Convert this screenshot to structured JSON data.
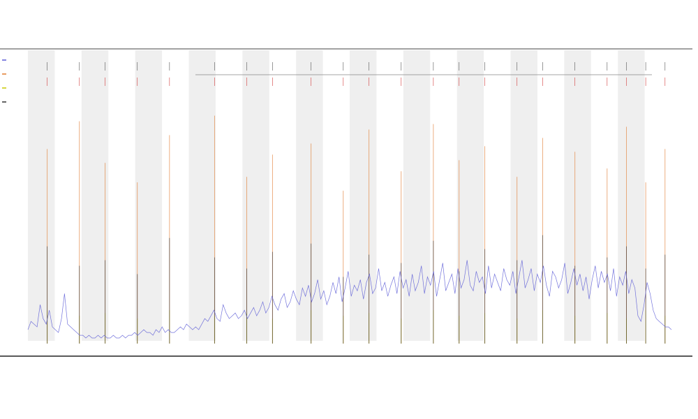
{
  "chart_data": {
    "type": "line",
    "title": "",
    "subtitle_lines": [],
    "xlabel": "",
    "ylabel": "",
    "grid": false,
    "legend_placement": "left",
    "band_color": "#efefef",
    "series": [
      {
        "name": "",
        "color": "#5b5bd6",
        "kind": "line",
        "values": [
          5,
          8,
          7,
          6,
          14,
          9,
          7,
          12,
          6,
          5,
          4,
          9,
          18,
          7,
          6,
          5,
          4,
          3,
          3,
          2,
          3,
          2,
          2,
          3,
          2,
          3,
          2,
          2,
          3,
          2,
          2,
          3,
          2,
          3,
          3,
          4,
          3,
          4,
          5,
          4,
          4,
          3,
          5,
          4,
          6,
          4,
          5,
          4,
          4,
          5,
          6,
          5,
          7,
          6,
          5,
          6,
          5,
          7,
          9,
          8,
          10,
          12,
          9,
          8,
          14,
          11,
          9,
          10,
          11,
          9,
          10,
          12,
          9,
          11,
          13,
          10,
          12,
          15,
          11,
          13,
          17,
          14,
          12,
          16,
          18,
          13,
          15,
          19,
          16,
          14,
          20,
          17,
          21,
          15,
          18,
          23,
          16,
          19,
          14,
          17,
          22,
          18,
          24,
          15,
          20,
          26,
          17,
          21,
          19,
          23,
          16,
          22,
          25,
          18,
          20,
          27,
          19,
          22,
          17,
          21,
          24,
          18,
          26,
          20,
          23,
          17,
          25,
          19,
          22,
          28,
          18,
          24,
          21,
          26,
          17,
          23,
          29,
          19,
          22,
          25,
          18,
          27,
          20,
          23,
          30,
          21,
          19,
          26,
          22,
          24,
          18,
          28,
          20,
          25,
          22,
          19,
          27,
          23,
          21,
          26,
          18,
          24,
          30,
          20,
          23,
          27,
          19,
          25,
          22,
          28,
          21,
          17,
          26,
          24,
          20,
          23,
          29,
          18,
          22,
          27,
          21,
          25,
          19,
          24,
          16,
          23,
          28,
          20,
          26,
          22,
          25,
          19,
          27,
          17,
          24,
          21,
          26,
          18,
          23,
          20,
          10,
          8,
          14,
          22,
          18,
          12,
          9,
          8,
          7,
          6,
          6,
          5
        ]
      },
      {
        "name": "",
        "color": "#e07a2e",
        "kind": "spikes",
        "x": [
          3,
          8,
          12,
          17,
          22,
          29,
          34,
          38,
          44,
          49,
          53,
          58,
          63,
          67,
          71,
          76,
          80,
          85,
          90,
          93,
          96,
          99
        ],
        "values": [
          70,
          80,
          65,
          58,
          75,
          82,
          60,
          68,
          72,
          55,
          77,
          62,
          79,
          66,
          71,
          60,
          74,
          69,
          63,
          78,
          58,
          70
        ]
      },
      {
        "name": "",
        "color": "#c8c800",
        "kind": "spikes",
        "x": [
          3,
          8,
          12,
          17,
          22,
          29,
          34,
          38,
          44,
          49,
          53,
          58,
          63,
          67,
          71,
          76,
          80,
          85,
          90,
          93,
          96,
          99
        ],
        "values": [
          12,
          10,
          11,
          9,
          12,
          10,
          11,
          9,
          12,
          10,
          11,
          9,
          12,
          10,
          11,
          9,
          12,
          10,
          11,
          9,
          12,
          10
        ]
      },
      {
        "name": "",
        "color": "#333333",
        "kind": "spikes",
        "x": [
          3,
          8,
          12,
          17,
          22,
          29,
          34,
          38,
          44,
          49,
          53,
          58,
          63,
          67,
          71,
          76,
          80,
          85,
          90,
          93,
          96,
          99
        ],
        "values": [
          35,
          28,
          30,
          25,
          38,
          31,
          27,
          33,
          36,
          24,
          32,
          29,
          37,
          26,
          34,
          30,
          39,
          28,
          31,
          35,
          27,
          32
        ]
      }
    ],
    "annotation_rows": [
      {
        "label": "",
        "color": "#555555"
      },
      {
        "label": "",
        "color": "#d23c3c"
      }
    ],
    "x_tick_labels": [],
    "ylim": [
      0,
      100
    ]
  }
}
